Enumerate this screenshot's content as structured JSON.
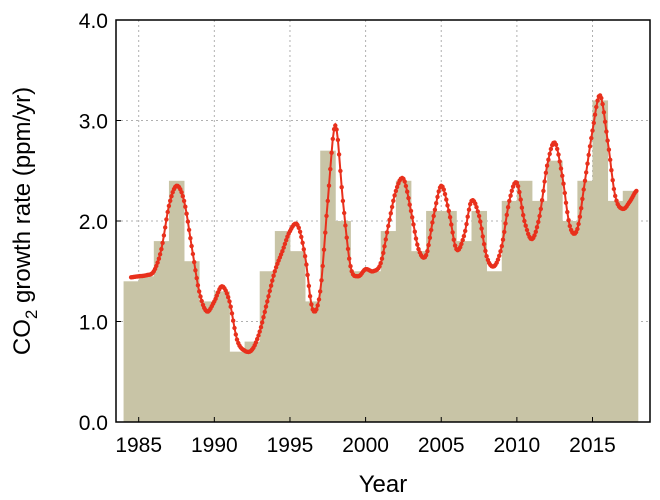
{
  "chart_data": {
    "type": "bar",
    "title": "",
    "xlabel": "Year",
    "ylabel_main": "CO",
    "ylabel_sub": "2",
    "ylabel_rest": " growth rate (ppm/yr)",
    "xlim": [
      1983.5,
      2018.8
    ],
    "ylim": [
      0,
      4
    ],
    "xticks": [
      1985,
      1990,
      1995,
      2000,
      2005,
      2010,
      2015
    ],
    "yticks": [
      "0.0",
      "1.0",
      "2.0",
      "3.0",
      "4.0"
    ],
    "grid": true,
    "bar_color": "#c8c4a6",
    "line_color": "#e8301c",
    "series": [
      {
        "kind": "annual-bars",
        "x": [
          1984,
          1985,
          1986,
          1987,
          1988,
          1989,
          1990,
          1991,
          1992,
          1993,
          1994,
          1995,
          1996,
          1997,
          1998,
          1999,
          2000,
          2001,
          2002,
          2003,
          2004,
          2005,
          2006,
          2007,
          2008,
          2009,
          2010,
          2011,
          2012,
          2013,
          2014,
          2015,
          2016,
          2017
        ],
        "values": [
          1.4,
          1.45,
          1.8,
          2.4,
          1.6,
          1.2,
          1.3,
          0.7,
          0.8,
          1.5,
          1.9,
          1.7,
          1.2,
          2.7,
          2.0,
          1.5,
          1.5,
          1.9,
          2.4,
          1.7,
          2.1,
          2.1,
          1.8,
          2.1,
          1.5,
          2.2,
          2.4,
          2.2,
          2.6,
          2.0,
          2.4,
          3.2,
          2.2,
          2.3
        ]
      },
      {
        "kind": "monthly-line",
        "x": [
          1984.5,
          1985.0,
          1985.5,
          1986.0,
          1986.5,
          1987.0,
          1987.5,
          1988.0,
          1988.5,
          1989.0,
          1989.5,
          1990.0,
          1990.5,
          1991.0,
          1991.5,
          1992.0,
          1992.5,
          1993.0,
          1993.5,
          1994.0,
          1994.5,
          1995.0,
          1995.5,
          1996.0,
          1996.5,
          1997.0,
          1997.5,
          1998.0,
          1998.5,
          1999.0,
          1999.5,
          2000.0,
          2000.5,
          2001.0,
          2001.5,
          2002.0,
          2002.5,
          2003.0,
          2003.5,
          2004.0,
          2004.5,
          2005.0,
          2005.5,
          2006.0,
          2006.5,
          2007.0,
          2007.5,
          2008.0,
          2008.5,
          2009.0,
          2009.5,
          2010.0,
          2010.5,
          2011.0,
          2011.5,
          2012.0,
          2012.5,
          2013.0,
          2013.5,
          2014.0,
          2014.5,
          2015.0,
          2015.5,
          2016.0,
          2016.5,
          2017.0,
          2017.5,
          2017.9
        ],
        "values": [
          1.44,
          1.45,
          1.46,
          1.5,
          1.72,
          2.15,
          2.35,
          2.2,
          1.75,
          1.3,
          1.1,
          1.2,
          1.35,
          1.2,
          0.82,
          0.71,
          0.72,
          0.9,
          1.2,
          1.5,
          1.7,
          1.9,
          1.96,
          1.65,
          1.12,
          1.3,
          2.2,
          2.95,
          2.2,
          1.55,
          1.45,
          1.52,
          1.5,
          1.58,
          1.95,
          2.3,
          2.42,
          2.1,
          1.72,
          1.66,
          2.05,
          2.35,
          2.1,
          1.72,
          1.85,
          2.2,
          2.05,
          1.65,
          1.55,
          1.75,
          2.2,
          2.38,
          2.0,
          1.82,
          2.05,
          2.55,
          2.78,
          2.45,
          1.95,
          1.92,
          2.4,
          2.9,
          3.25,
          2.8,
          2.25,
          2.12,
          2.2,
          2.3
        ]
      }
    ]
  }
}
